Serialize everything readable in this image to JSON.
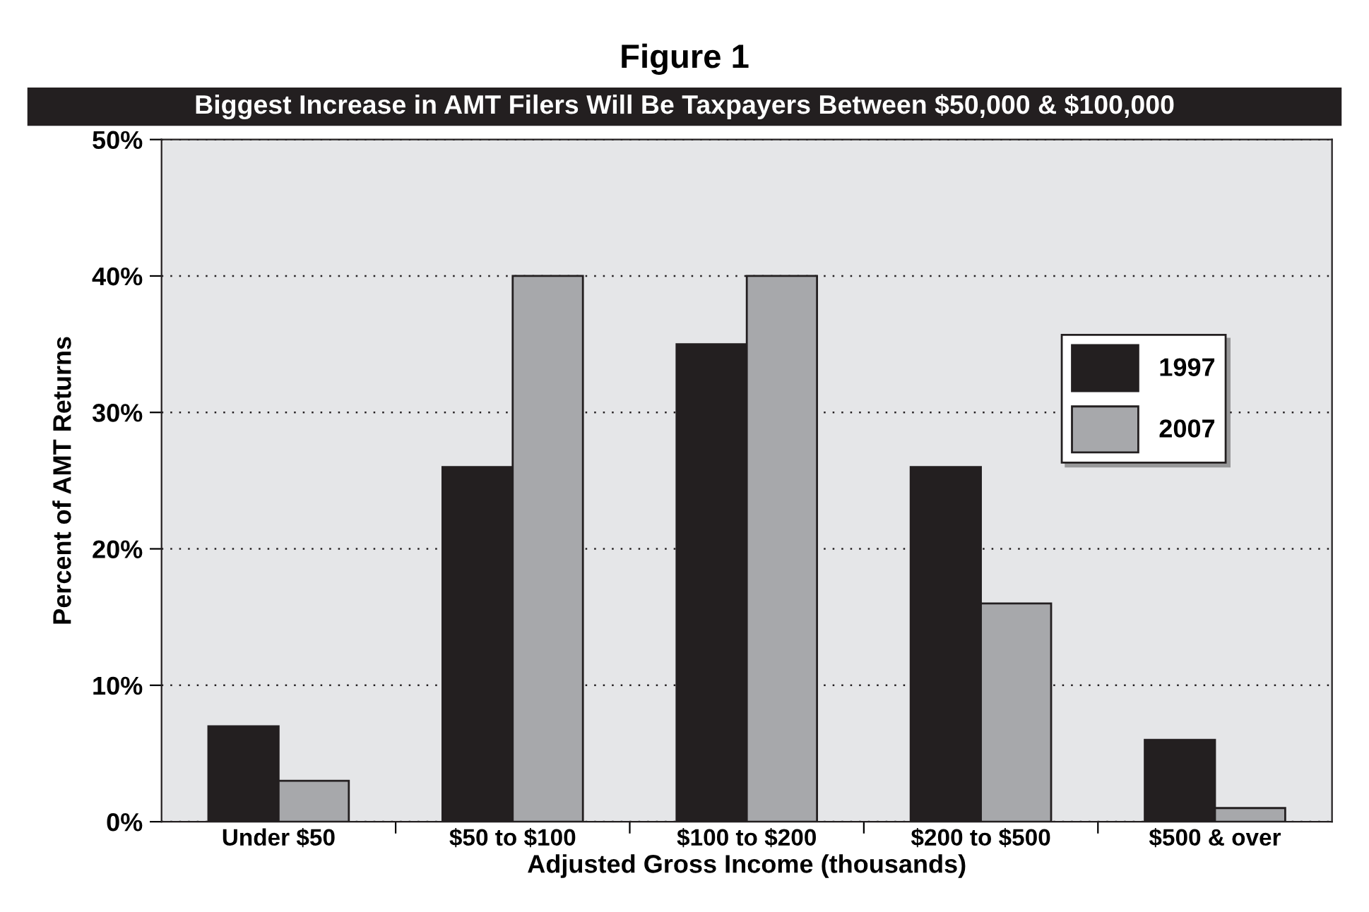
{
  "chart_data": {
    "type": "bar",
    "title": "Figure 1",
    "subtitle": "Biggest Increase in AMT Filers Will Be Taxpayers Between $50,000 & $100,000",
    "xlabel": "Adjusted Gross Income (thousands)",
    "ylabel": "Percent of AMT Returns",
    "categories": [
      "Under $50",
      "$50 to $100",
      "$100 to $200",
      "$200 to $500",
      "$500 & over"
    ],
    "series": [
      {
        "name": "1997",
        "color": "#231f20",
        "values": [
          7,
          26,
          35,
          26,
          6
        ]
      },
      {
        "name": "2007",
        "color": "#a7a8ab",
        "values": [
          3,
          40,
          40,
          16,
          1
        ]
      }
    ],
    "ylim": [
      0,
      50
    ],
    "yticks": [
      {
        "value": 0,
        "label": "0%"
      },
      {
        "value": 10,
        "label": "10%"
      },
      {
        "value": 20,
        "label": "20%"
      },
      {
        "value": 30,
        "label": "30%"
      },
      {
        "value": 40,
        "label": "40%"
      },
      {
        "value": 50,
        "label": "50%"
      }
    ],
    "grid": "y",
    "legend": "right"
  }
}
